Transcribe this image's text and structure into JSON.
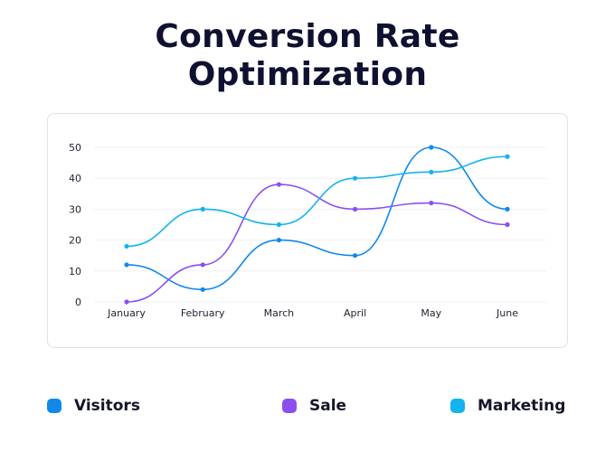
{
  "chart_data": {
    "type": "line",
    "title": [
      "Conversion Rate",
      "Optimization"
    ],
    "categories": [
      "January",
      "February",
      "March",
      "April",
      "May",
      "June"
    ],
    "ylim": [
      0,
      50
    ],
    "yticks": [
      "0",
      "10",
      "20",
      "30",
      "40",
      "50"
    ],
    "grid": true,
    "legend_position": "bottom",
    "series": [
      {
        "name": "Visitors",
        "color": "#1088ea",
        "values": [
          12,
          4,
          20,
          15,
          50,
          30
        ]
      },
      {
        "name": "Sale",
        "color": "#8b4ff0",
        "values": [
          0,
          12,
          38,
          30,
          32,
          25
        ]
      },
      {
        "name": "Marketing",
        "color": "#12b3ee",
        "values": [
          18,
          30,
          25,
          40,
          42,
          47
        ]
      }
    ]
  }
}
